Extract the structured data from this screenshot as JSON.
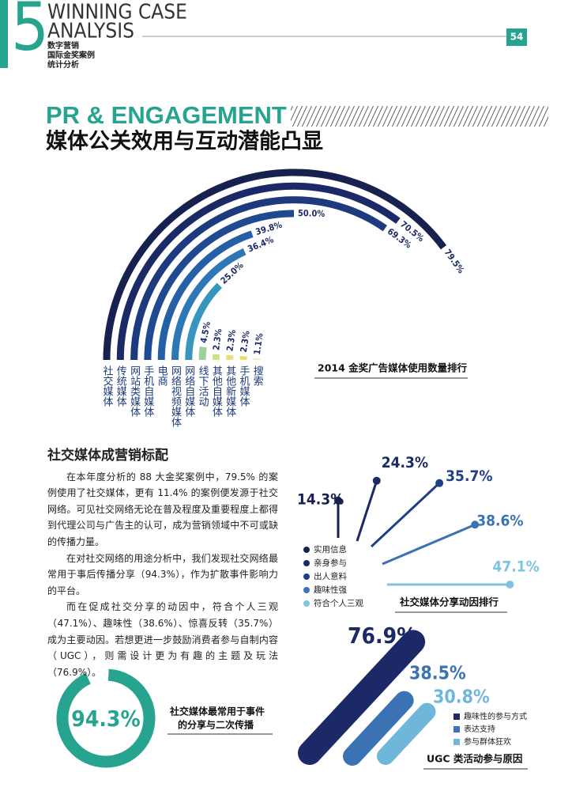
{
  "header": {
    "chapter": "5",
    "title": [
      "WINNING CASE",
      "ANALYSIS"
    ],
    "subtitle": [
      "数字营销",
      "国际金奖案例",
      "统计分析"
    ],
    "page_number": "54"
  },
  "headline": {
    "english": "PR & ENGAGEMENT",
    "chinese": "媒体公关效用与互动潜能凸显"
  },
  "article": {
    "heading": "社交媒体成营销标配",
    "paragraphs": [
      "在本年度分析的 88 大金奖案例中，79.5% 的案例使用了社交媒体，更有 11.4% 的案例便发源于社交网络。可见社交网络无论在普及程度及重要程度上都得到代理公司与广告主的认可，成为营销领域中不可或缺的传播力量。",
      "在对社交网络的用途分析中，我们发现社交网络最常用于事后传播分享（94.3%），作为扩散事件影响力的平台。",
      "而在促成社交分享的动因中，符合个人三观（47.1%）、趣味性（38.6%）、惊喜反转（35.7%）成为主要动因。若想更进一步鼓励消费者参与自制内容（UGC），则需设计更为有趣的主题及玩法（76.9%）。"
    ]
  },
  "chart_data": [
    {
      "type": "radial-bar",
      "title": "2014 金奖广告媒体使用数量排行",
      "categories": [
        "社交媒体",
        "传统媒体",
        "网站类媒体",
        "手机自媒体",
        "电商",
        "网络视频媒体",
        "网络自媒体",
        "线下活动",
        "其他自媒体",
        "其他新媒体",
        "手机媒体",
        "搜索"
      ],
      "values": [
        79.5,
        70.5,
        69.3,
        50.0,
        39.8,
        36.4,
        25.0,
        4.5,
        2.3,
        2.3,
        2.3,
        1.1
      ],
      "value_labels": [
        "79.5%",
        "70.5%",
        "69.3%",
        "50.0%",
        "39.8%",
        "36.4%",
        "25.0%",
        "4.5%",
        "2.3%",
        "2.3%",
        "2.3%",
        "1.1%"
      ],
      "colors": [
        "#16214f",
        "#1b2a66",
        "#1d3a7e",
        "#1f4a92",
        "#2560a6",
        "#2d78b4",
        "#3696bd",
        "#9cd29a",
        "#cfe08c",
        "#e8e07a",
        "#f0d96a",
        "#f3e9a6"
      ]
    },
    {
      "type": "lollipop",
      "title": "社交媒体分享动因排行",
      "categories": [
        "实用信息",
        "亲身参与",
        "出人意料",
        "趣味性强",
        "符合个人三观"
      ],
      "values": [
        14.3,
        24.3,
        35.7,
        38.6,
        47.1
      ],
      "value_labels": [
        "14.3%",
        "24.3%",
        "35.7%",
        "38.6%",
        "47.1%"
      ],
      "colors": [
        "#16214f",
        "#1b2a66",
        "#1f3f86",
        "#3a72b4",
        "#7cc4e2"
      ]
    },
    {
      "type": "donut",
      "title": [
        "社交媒体最常用于事件",
        "的分享与二次传播"
      ],
      "values": [
        94.3
      ],
      "value_labels": [
        "94.3%"
      ],
      "color": "#27a48f"
    },
    {
      "type": "diagonal-bar",
      "title": "UGC 类活动参与原因",
      "categories": [
        "趣味性的参与方式",
        "表达支持",
        "参与群体狂欢"
      ],
      "values": [
        76.9,
        38.5,
        30.8
      ],
      "value_labels": [
        "76.9%",
        "38.5%",
        "30.8%"
      ],
      "colors": [
        "#1b2a66",
        "#3a72b4",
        "#6fb7da"
      ]
    }
  ]
}
